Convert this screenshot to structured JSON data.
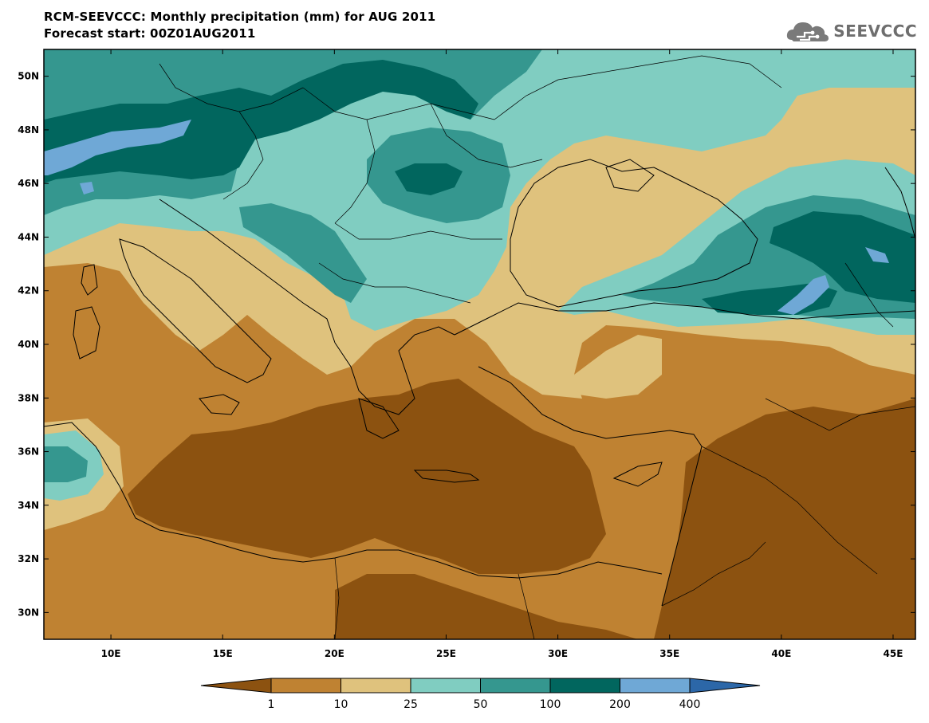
{
  "header": {
    "title_line1": "RCM-SEEVCCC: Monthly precipitation (mm) for AUG 2011",
    "title_line2": "Forecast start: 00Z01AUG2011",
    "logo_text": "SEEVCCC"
  },
  "map": {
    "lon_range": [
      7,
      46
    ],
    "lat_range": [
      29,
      51
    ],
    "lat_ticks": [
      "50N",
      "48N",
      "46N",
      "44N",
      "42N",
      "40N",
      "38N",
      "36N",
      "34N",
      "32N",
      "30N"
    ],
    "lat_values": [
      50,
      48,
      46,
      44,
      42,
      40,
      38,
      36,
      34,
      32,
      30
    ],
    "lon_ticks": [
      "10E",
      "15E",
      "20E",
      "25E",
      "30E",
      "35E",
      "40E",
      "45E"
    ],
    "lon_values": [
      10,
      15,
      20,
      25,
      30,
      35,
      40,
      45
    ]
  },
  "colorbar": {
    "levels": [
      "1",
      "10",
      "25",
      "50",
      "100",
      "200",
      "400"
    ],
    "colors": [
      "#8c5210",
      "#bf8232",
      "#dfc27d",
      "#80cdc1",
      "#35978f",
      "#01665e",
      "#6fa8d6",
      "#2c67a8"
    ]
  },
  "colors": {
    "very_dry": "#8c5210",
    "dry": "#bf8232",
    "moderate": "#dfc27d",
    "wet": "#80cdc1",
    "wetter": "#35978f",
    "very_wet": "#01665e",
    "extreme": "#6fa8d6"
  }
}
